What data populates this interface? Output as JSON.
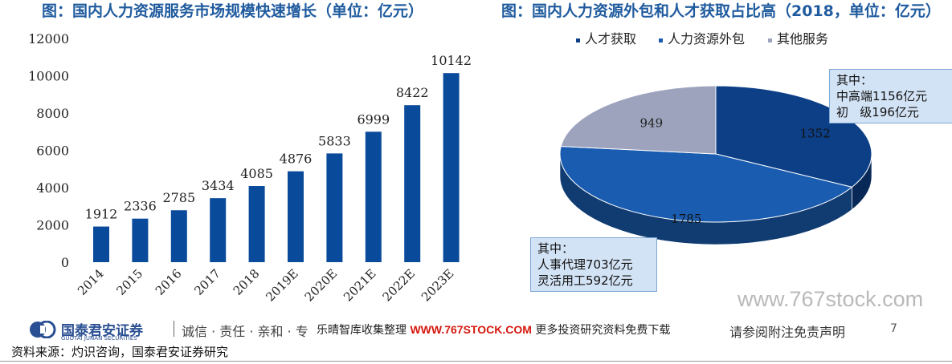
{
  "chart_data": [
    {
      "type": "bar",
      "title": "图：国内人力资源服务市场规模快速增长（单位：亿元）",
      "categories": [
        "2014",
        "2015",
        "2016",
        "2017",
        "2018",
        "2019E",
        "2020E",
        "2021E",
        "2022E",
        "2023E"
      ],
      "values": [
        1912,
        2336,
        2785,
        3434,
        4085,
        4876,
        5833,
        6999,
        8422,
        10142
      ],
      "yticks": [
        "0",
        "2000",
        "4000",
        "6000",
        "8000",
        "10000",
        "12000"
      ],
      "ylim": [
        0,
        12000
      ],
      "grid": false,
      "color": "#0a4a9a"
    },
    {
      "type": "pie",
      "title": "图：国内人力资源外包和人才获取占比高（2018，单位：亿元）",
      "legend_position": "top",
      "slices": [
        {
          "name": "人才获取",
          "value": 1352,
          "color": "#0c3f86"
        },
        {
          "name": "人力资源外包",
          "value": 1785,
          "color": "#1a5cb0"
        },
        {
          "name": "其他服务",
          "value": 949,
          "color": "#9da3bd"
        }
      ]
    }
  ],
  "callouts": {
    "top": [
      "其中：",
      "中高端1156亿元",
      "初   级196亿元"
    ],
    "bottom": [
      "其中：",
      "人事代理703亿元",
      "灵活用工592亿元"
    ]
  },
  "footer": {
    "brand": "国泰君安证券",
    "brand_en": "GUOTAI JUNAN SECURITIES",
    "slogan": "诚信 · 责任 · 亲和 · 专",
    "promo_prefix": "乐晴智库收集整理 ",
    "promo_url": "WWW.767STOCK.COM",
    "promo_suffix": " 更多投资研究资料免费下载",
    "disclaimer": "请参阅附注免责声明",
    "page": "7",
    "source": "资料来源：灼识咨询，国泰君安证券研究"
  },
  "watermark": "www.767stock.com",
  "colors": {
    "title": "#1f5b9e",
    "brand": "#2a4f92",
    "url": "#d4180f"
  }
}
